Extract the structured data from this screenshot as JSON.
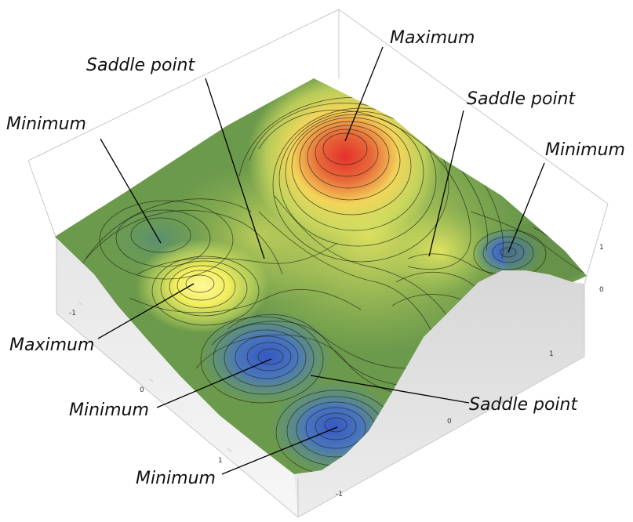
{
  "annotations": {
    "saddle_top_left": "Saddle point",
    "maximum_top": "Maximum",
    "saddle_top_right": "Saddle point",
    "minimum_left": "Minimum",
    "minimum_right": "Minimum",
    "maximum_left": "Maximum",
    "minimum_center": "Minimum",
    "saddle_bottom_right": "Saddle point",
    "minimum_bottom": "Minimum"
  },
  "axis_ticks": {
    "left": [
      "-1",
      "0",
      "1"
    ],
    "right": [
      "1",
      "0",
      "-1"
    ],
    "vertical": [
      "1",
      "0"
    ]
  },
  "colors": {
    "low": "#3a64c8",
    "mid": "#6c9a4c",
    "mid_high": "#f0ea5e",
    "high": "#e0302a",
    "base_wall_left": "#f2f2f2",
    "base_wall_right": "#e2e2e2",
    "box_edge": "#c8c8c8"
  }
}
